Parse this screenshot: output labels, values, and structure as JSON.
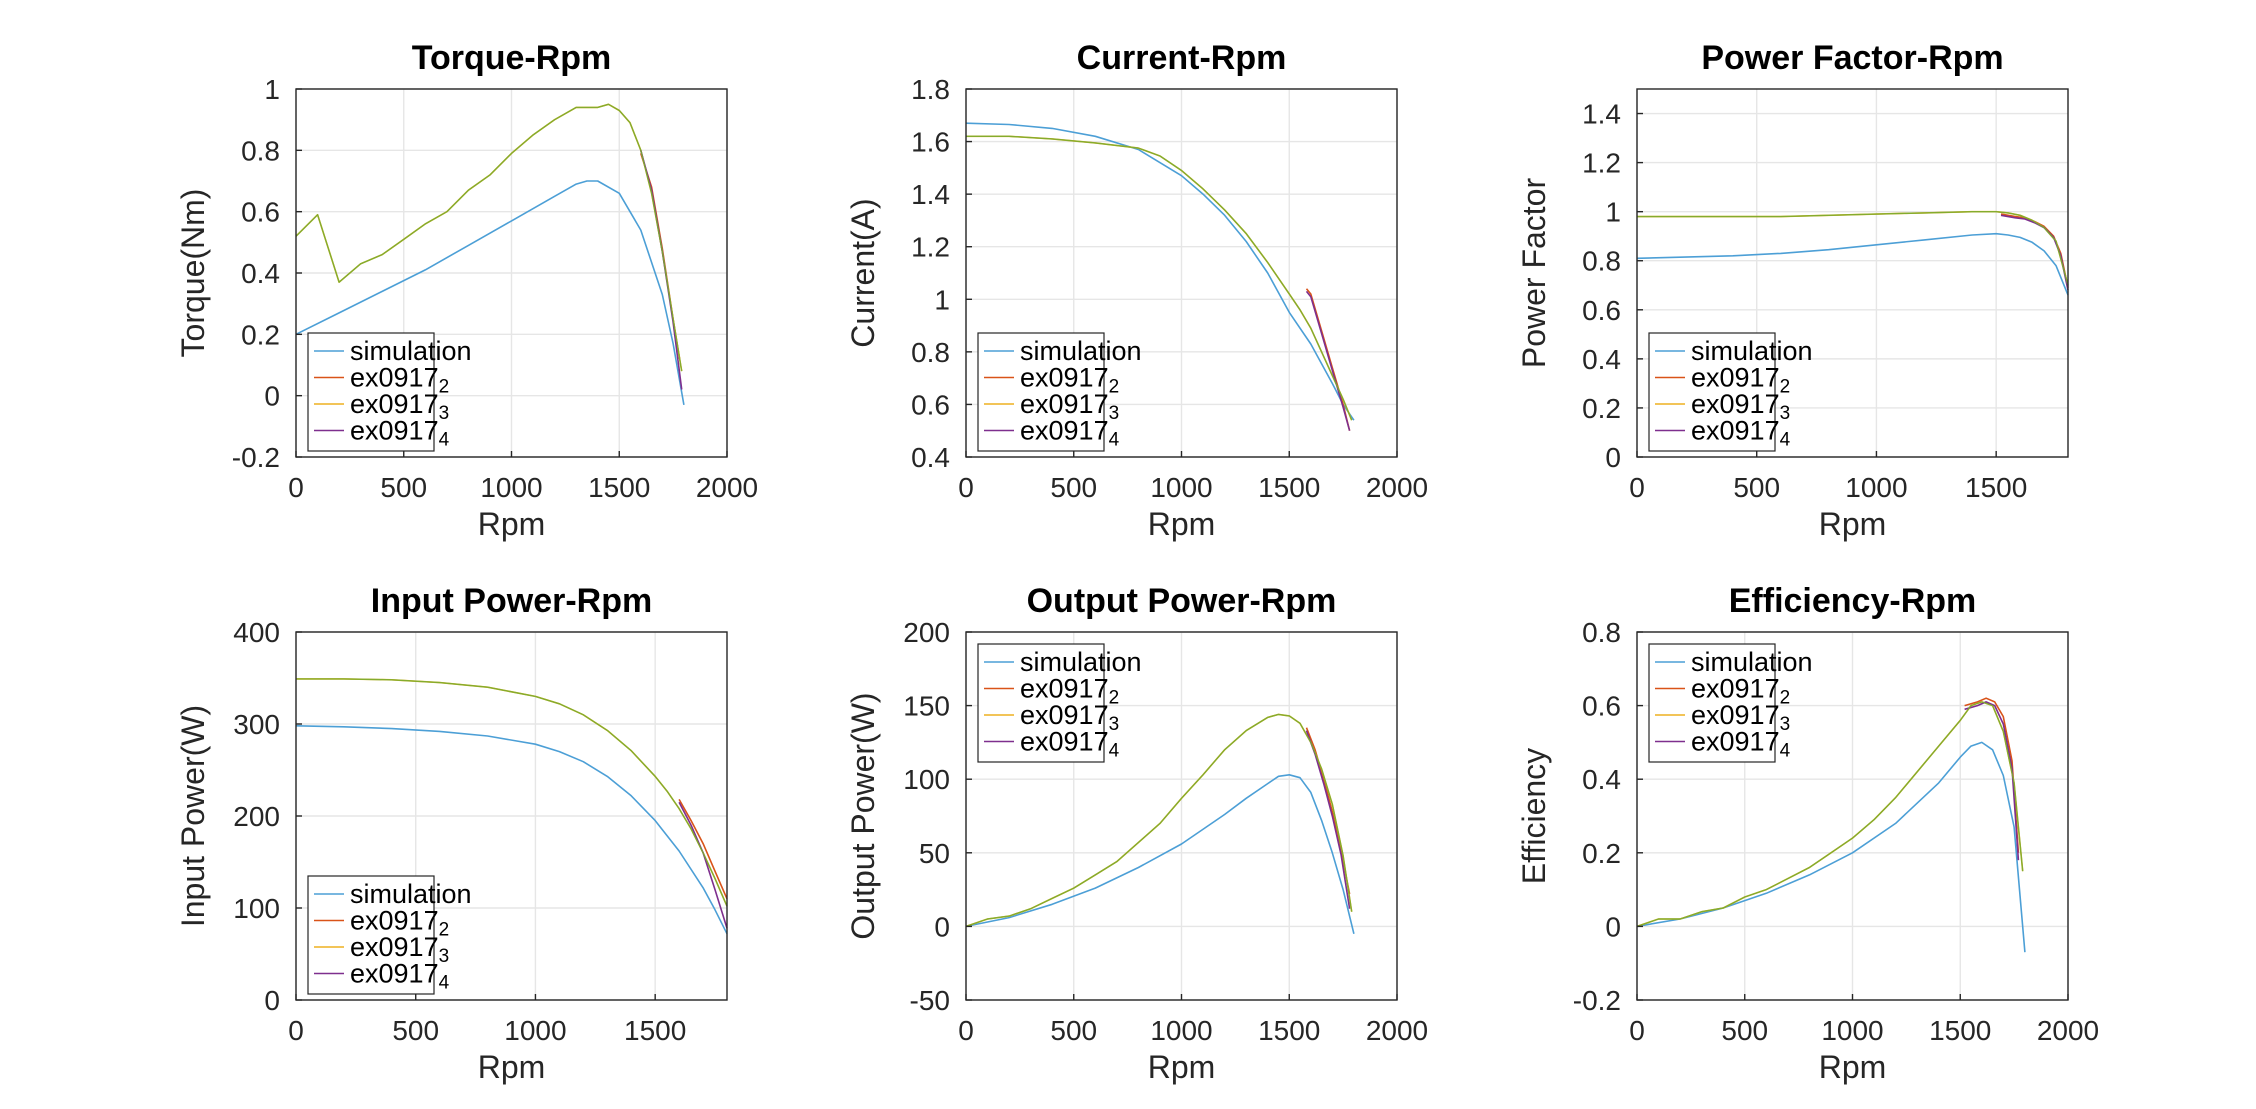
{
  "chart_data": [
    {
      "type": "line",
      "title": "Torque-Rpm",
      "xlabel": "Rpm",
      "ylabel": "Torque(Nm)",
      "xlim": [
        0,
        2000
      ],
      "ylim": [
        -0.2,
        1
      ],
      "xticks": [
        "0",
        "500",
        "1000",
        "1500",
        "2000"
      ],
      "yticks": [
        "-0.2",
        "0",
        "0.2",
        "0.4",
        "0.6",
        "0.8",
        "1"
      ],
      "grid": true,
      "legend_position": "bottom-left",
      "series": [
        {
          "name": "simulation",
          "color": "#4c9fd6",
          "x": [
            0,
            200,
            400,
            600,
            800,
            1000,
            1200,
            1300,
            1350,
            1400,
            1500,
            1600,
            1700,
            1750,
            1800
          ],
          "y": [
            0.2,
            0.27,
            0.34,
            0.41,
            0.49,
            0.57,
            0.65,
            0.69,
            0.7,
            0.7,
            0.66,
            0.54,
            0.33,
            0.17,
            -0.03
          ]
        },
        {
          "name": "ex0917_2",
          "color": "#d95319",
          "x": [
            1600,
            1650,
            1700,
            1750,
            1780
          ],
          "y": [
            0.79,
            0.68,
            0.48,
            0.25,
            0.12
          ]
        },
        {
          "name": "ex0917_3",
          "color": "#edb120",
          "x": [
            0,
            100,
            200,
            300,
            400,
            500,
            600,
            700,
            800,
            900,
            1000,
            1100,
            1200,
            1300,
            1400,
            1450,
            1500,
            1550,
            1600,
            1650,
            1700,
            1750,
            1790
          ],
          "y": [
            0.52,
            0.59,
            0.37,
            0.43,
            0.46,
            0.51,
            0.56,
            0.6,
            0.67,
            0.72,
            0.79,
            0.85,
            0.9,
            0.94,
            0.94,
            0.95,
            0.93,
            0.89,
            0.8,
            0.66,
            0.47,
            0.25,
            0.08
          ]
        },
        {
          "name": "ex0917_4",
          "color": "#7e2f8e",
          "x": [
            1600,
            1650,
            1700,
            1750,
            1790
          ],
          "y": [
            0.8,
            0.67,
            0.47,
            0.24,
            0.02
          ]
        }
      ],
      "overlay_color": "#77ac30"
    },
    {
      "type": "line",
      "title": "Current-Rpm",
      "xlabel": "Rpm",
      "ylabel": "Current(A)",
      "xlim": [
        0,
        2000
      ],
      "ylim": [
        0.4,
        1.8
      ],
      "xticks": [
        "0",
        "500",
        "1000",
        "1500",
        "2000"
      ],
      "yticks": [
        "0.4",
        "0.6",
        "0.8",
        "1",
        "1.2",
        "1.4",
        "1.6",
        "1.8"
      ],
      "grid": true,
      "legend_position": "bottom-left",
      "series": [
        {
          "name": "simulation",
          "color": "#4c9fd6",
          "x": [
            0,
            200,
            400,
            600,
            800,
            1000,
            1100,
            1200,
            1300,
            1400,
            1500,
            1600,
            1700,
            1750,
            1800
          ],
          "y": [
            1.67,
            1.665,
            1.65,
            1.62,
            1.57,
            1.47,
            1.4,
            1.32,
            1.22,
            1.1,
            0.95,
            0.83,
            0.68,
            0.6,
            0.54
          ]
        },
        {
          "name": "ex0917_2",
          "color": "#d95319",
          "x": [
            1580,
            1600,
            1650,
            1700,
            1750,
            1780
          ],
          "y": [
            1.04,
            1.02,
            0.88,
            0.74,
            0.6,
            0.5
          ]
        },
        {
          "name": "ex0917_3",
          "color": "#edb120",
          "x": [
            0,
            200,
            400,
            600,
            800,
            900,
            1000,
            1100,
            1200,
            1300,
            1400,
            1500,
            1550,
            1600,
            1650,
            1700,
            1750,
            1790
          ],
          "y": [
            1.62,
            1.62,
            1.61,
            1.595,
            1.575,
            1.545,
            1.49,
            1.42,
            1.34,
            1.25,
            1.14,
            1.02,
            0.96,
            0.89,
            0.8,
            0.71,
            0.62,
            0.54
          ]
        },
        {
          "name": "ex0917_4",
          "color": "#7e2f8e",
          "x": [
            1580,
            1600,
            1650,
            1700,
            1750,
            1780
          ],
          "y": [
            1.03,
            1.01,
            0.87,
            0.73,
            0.59,
            0.5
          ]
        }
      ],
      "overlay_color": "#77ac30"
    },
    {
      "type": "line",
      "title": "Power Factor-Rpm",
      "xlabel": "Rpm",
      "ylabel": "Power Factor",
      "xlim": [
        0,
        1800
      ],
      "ylim": [
        0,
        1.5
      ],
      "xticks": [
        "0",
        "500",
        "1000",
        "1500"
      ],
      "yticks": [
        "0",
        "0.2",
        "0.4",
        "0.6",
        "0.8",
        "1",
        "1.2",
        "1.4"
      ],
      "grid": true,
      "legend_position": "bottom-left",
      "series": [
        {
          "name": "simulation",
          "color": "#4c9fd6",
          "x": [
            0,
            200,
            400,
            600,
            800,
            1000,
            1200,
            1400,
            1500,
            1550,
            1600,
            1650,
            1700,
            1750,
            1800
          ],
          "y": [
            0.81,
            0.815,
            0.82,
            0.83,
            0.845,
            0.865,
            0.885,
            0.905,
            0.91,
            0.905,
            0.895,
            0.875,
            0.84,
            0.78,
            0.66
          ]
        },
        {
          "name": "ex0917_2",
          "color": "#d95319",
          "x": [
            1520,
            1580,
            1620,
            1660,
            1700,
            1740,
            1770,
            1800
          ],
          "y": [
            0.99,
            0.98,
            0.975,
            0.96,
            0.94,
            0.9,
            0.83,
            0.69
          ]
        },
        {
          "name": "ex0917_3",
          "color": "#edb120",
          "x": [
            0,
            200,
            400,
            600,
            800,
            1000,
            1200,
            1400,
            1500,
            1550,
            1600,
            1650,
            1700,
            1750,
            1800
          ],
          "y": [
            0.98,
            0.98,
            0.98,
            0.98,
            0.985,
            0.99,
            0.995,
            1.0,
            1.0,
            0.995,
            0.985,
            0.965,
            0.935,
            0.88,
            0.7
          ]
        },
        {
          "name": "ex0917_4",
          "color": "#7e2f8e",
          "x": [
            1520,
            1580,
            1620,
            1660,
            1700,
            1740,
            1770,
            1800
          ],
          "y": [
            0.985,
            0.975,
            0.97,
            0.955,
            0.935,
            0.895,
            0.82,
            0.68
          ]
        }
      ],
      "overlay_color": "#77ac30"
    },
    {
      "type": "line",
      "title": "Input Power-Rpm",
      "xlabel": "Rpm",
      "ylabel": "Input Power(W)",
      "xlim": [
        0,
        1800
      ],
      "ylim": [
        0,
        400
      ],
      "xticks": [
        "0",
        "500",
        "1000",
        "1500"
      ],
      "yticks": [
        "0",
        "100",
        "200",
        "300",
        "400"
      ],
      "grid": true,
      "legend_position": "bottom-left",
      "series": [
        {
          "name": "simulation",
          "color": "#4c9fd6",
          "x": [
            0,
            200,
            400,
            600,
            800,
            1000,
            1100,
            1200,
            1300,
            1400,
            1500,
            1600,
            1700,
            1750,
            1800
          ],
          "y": [
            298,
            297,
            295,
            292,
            287,
            278,
            270,
            259,
            243,
            222,
            195,
            162,
            122,
            98,
            72
          ]
        },
        {
          "name": "ex0917_2",
          "color": "#d95319",
          "x": [
            1600,
            1650,
            1700,
            1750,
            1800
          ],
          "y": [
            218,
            195,
            170,
            140,
            110
          ]
        },
        {
          "name": "ex0917_3",
          "color": "#edb120",
          "x": [
            0,
            200,
            400,
            600,
            800,
            1000,
            1100,
            1200,
            1300,
            1400,
            1500,
            1550,
            1600,
            1650,
            1700,
            1750,
            1800
          ],
          "y": [
            349,
            349,
            348,
            345,
            340,
            330,
            322,
            310,
            293,
            271,
            243,
            227,
            208,
            186,
            160,
            132,
            102
          ]
        },
        {
          "name": "ex0917_4",
          "color": "#7e2f8e",
          "x": [
            1600,
            1650,
            1700,
            1750,
            1800
          ],
          "y": [
            215,
            190,
            160,
            120,
            78
          ]
        }
      ],
      "overlay_color": "#77ac30"
    },
    {
      "type": "line",
      "title": "Output Power-Rpm",
      "xlabel": "Rpm",
      "ylabel": "Output Power(W)",
      "xlim": [
        0,
        2000
      ],
      "ylim": [
        -50,
        200
      ],
      "xticks": [
        "0",
        "500",
        "1000",
        "1500",
        "2000"
      ],
      "yticks": [
        "-50",
        "0",
        "50",
        "100",
        "150",
        "200"
      ],
      "grid": true,
      "legend_position": "top-left",
      "series": [
        {
          "name": "simulation",
          "color": "#4c9fd6",
          "x": [
            0,
            200,
            400,
            600,
            800,
            1000,
            1200,
            1300,
            1400,
            1450,
            1500,
            1550,
            1600,
            1650,
            1700,
            1750,
            1800
          ],
          "y": [
            0,
            6,
            15,
            26,
            40,
            56,
            76,
            87,
            97,
            102,
            103,
            101,
            91,
            72,
            50,
            25,
            -5
          ]
        },
        {
          "name": "ex0917_2",
          "color": "#d95319",
          "x": [
            1580,
            1620,
            1660,
            1700,
            1740,
            1780
          ],
          "y": [
            135,
            120,
            100,
            78,
            52,
            22
          ]
        },
        {
          "name": "ex0917_3",
          "color": "#edb120",
          "x": [
            0,
            100,
            200,
            300,
            400,
            500,
            600,
            700,
            800,
            900,
            1000,
            1100,
            1200,
            1300,
            1400,
            1450,
            1500,
            1550,
            1600,
            1650,
            1700,
            1750,
            1790
          ],
          "y": [
            0,
            5,
            7,
            12,
            19,
            26,
            35,
            44,
            57,
            70,
            87,
            103,
            120,
            133,
            142,
            144,
            143,
            138,
            125,
            107,
            83,
            48,
            10
          ]
        },
        {
          "name": "ex0917_4",
          "color": "#7e2f8e",
          "x": [
            1580,
            1620,
            1660,
            1700,
            1740,
            1780
          ],
          "y": [
            133,
            117,
            97,
            75,
            49,
            12
          ]
        }
      ],
      "overlay_color": "#77ac30"
    },
    {
      "type": "line",
      "title": "Efficiency-Rpm",
      "xlabel": "Rpm",
      "ylabel": "Efficiency",
      "xlim": [
        0,
        2000
      ],
      "ylim": [
        -0.2,
        0.8
      ],
      "xticks": [
        "0",
        "500",
        "1000",
        "1500",
        "2000"
      ],
      "yticks": [
        "-0.2",
        "0",
        "0.2",
        "0.4",
        "0.6",
        "0.8"
      ],
      "grid": true,
      "legend_position": "top-left",
      "series": [
        {
          "name": "simulation",
          "color": "#4c9fd6",
          "x": [
            0,
            200,
            400,
            600,
            800,
            1000,
            1200,
            1400,
            1500,
            1550,
            1600,
            1650,
            1700,
            1750,
            1800
          ],
          "y": [
            0,
            0.02,
            0.05,
            0.09,
            0.14,
            0.2,
            0.28,
            0.39,
            0.46,
            0.49,
            0.5,
            0.48,
            0.41,
            0.27,
            -0.07
          ]
        },
        {
          "name": "ex0917_2",
          "color": "#d95319",
          "x": [
            1520,
            1580,
            1620,
            1660,
            1700,
            1740,
            1770
          ],
          "y": [
            0.6,
            0.61,
            0.62,
            0.61,
            0.57,
            0.45,
            0.2
          ]
        },
        {
          "name": "ex0917_3",
          "color": "#edb120",
          "x": [
            0,
            100,
            200,
            300,
            400,
            500,
            600,
            700,
            800,
            900,
            1000,
            1100,
            1200,
            1300,
            1400,
            1500,
            1550,
            1600,
            1650,
            1700,
            1750,
            1790
          ],
          "y": [
            0,
            0.02,
            0.02,
            0.04,
            0.05,
            0.08,
            0.1,
            0.13,
            0.16,
            0.2,
            0.24,
            0.29,
            0.35,
            0.42,
            0.49,
            0.56,
            0.6,
            0.61,
            0.6,
            0.53,
            0.39,
            0.15
          ]
        },
        {
          "name": "ex0917_4",
          "color": "#7e2f8e",
          "x": [
            1520,
            1580,
            1620,
            1660,
            1700,
            1740,
            1770
          ],
          "y": [
            0.59,
            0.6,
            0.61,
            0.6,
            0.55,
            0.43,
            0.18
          ]
        }
      ],
      "overlay_color": "#77ac30"
    }
  ]
}
